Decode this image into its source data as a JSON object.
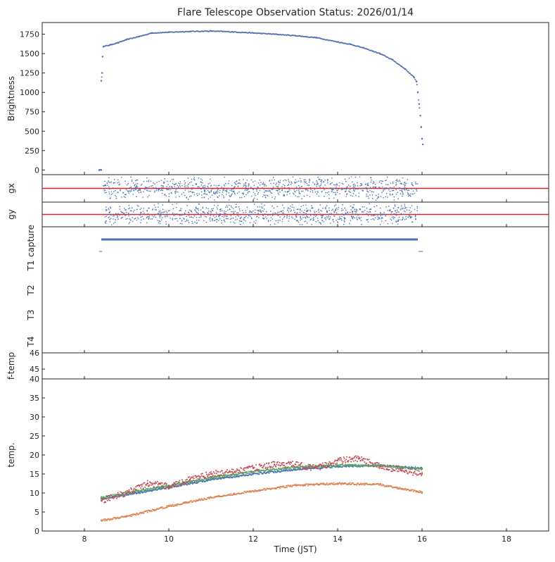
{
  "chart_data": {
    "title": "Flare Telescope Observation Status: 2026/01/14",
    "xlabel": "Time (JST)",
    "xlim": [
      7,
      19
    ],
    "xticks": [
      8,
      10,
      12,
      14,
      16,
      18
    ],
    "colors": {
      "blue": "#4c72b0",
      "orange": "#dd8452",
      "green": "#55a868",
      "red": "#c44e52",
      "axis": "#262626"
    },
    "panels": [
      {
        "id": "brightness",
        "type": "scatter",
        "ylabel": "Brightness",
        "ylim": [
          -60,
          1900
        ],
        "yticks": [
          0,
          250,
          500,
          750,
          1000,
          1250,
          1500,
          1750
        ],
        "series": [
          {
            "name": "Brightness",
            "color": "#4c72b0",
            "points": [
              [
                8.35,
                0
              ],
              [
                8.4,
                0
              ],
              [
                8.4,
                1150
              ],
              [
                8.42,
                1250
              ],
              [
                8.43,
                1460
              ],
              [
                8.45,
                1590
              ],
              [
                8.6,
                1610
              ],
              [
                8.8,
                1640
              ],
              [
                9.0,
                1680
              ],
              [
                9.3,
                1720
              ],
              [
                9.6,
                1765
              ],
              [
                10.0,
                1775
              ],
              [
                10.5,
                1785
              ],
              [
                11.0,
                1790
              ],
              [
                11.5,
                1780
              ],
              [
                12.0,
                1765
              ],
              [
                12.5,
                1750
              ],
              [
                13.0,
                1730
              ],
              [
                13.5,
                1705
              ],
              [
                14.0,
                1650
              ],
              [
                14.3,
                1620
              ],
              [
                14.6,
                1575
              ],
              [
                15.0,
                1500
              ],
              [
                15.3,
                1420
              ],
              [
                15.6,
                1300
              ],
              [
                15.8,
                1200
              ],
              [
                15.87,
                1140
              ],
              [
                15.9,
                1000
              ],
              [
                15.93,
                850
              ],
              [
                15.96,
                700
              ],
              [
                15.98,
                550
              ],
              [
                16.0,
                400
              ],
              [
                16.02,
                330
              ]
            ]
          }
        ]
      },
      {
        "id": "gx",
        "type": "scatter",
        "ylabel": "gx",
        "ylim": [
          -1,
          1
        ],
        "reference_line": 0,
        "reference_color": "#d62728",
        "series": [
          {
            "name": "gx",
            "color": "#4c72b0",
            "x_range": [
              8.45,
              15.9
            ],
            "spread": 0.6
          }
        ]
      },
      {
        "id": "gy",
        "type": "scatter",
        "ylabel": "gy",
        "ylim": [
          -1,
          1
        ],
        "reference_line": 0,
        "reference_color": "#d62728",
        "series": [
          {
            "name": "gy",
            "color": "#4c72b0",
            "x_range": [
              8.45,
              15.9
            ],
            "spread": 0.6
          }
        ]
      },
      {
        "id": "status",
        "type": "timeline",
        "ylabel_items": [
          "capture",
          "T1",
          "T2",
          "T3",
          "T4"
        ],
        "series": [
          {
            "name": "capture",
            "color": "#4c72b0",
            "segments": [
              [
                8.4,
                15.9
              ]
            ]
          },
          {
            "name": "T1",
            "color": "#4c72b0",
            "segments": [
              [
                8.35,
                8.42
              ],
              [
                15.92,
                16.02
              ]
            ]
          }
        ]
      },
      {
        "id": "f-temp",
        "type": "scatter",
        "ylabel": "f-temp",
        "ylim": [
          44.4,
          46
        ],
        "yticks": [
          45,
          46
        ]
      },
      {
        "id": "temp",
        "type": "scatter",
        "ylabel": "temp.",
        "ylim": [
          0,
          40
        ],
        "yticks": [
          0,
          5,
          10,
          15,
          20,
          25,
          30,
          35,
          40
        ],
        "series": [
          {
            "name": "blue",
            "color": "#4c72b0",
            "points": [
              [
                8.4,
                8.5
              ],
              [
                9,
                9.5
              ],
              [
                10,
                11.5
              ],
              [
                11,
                13.5
              ],
              [
                12,
                15.0
              ],
              [
                13,
                16.2
              ],
              [
                14,
                17.0
              ],
              [
                15,
                17.2
              ],
              [
                16,
                16.5
              ]
            ]
          },
          {
            "name": "green",
            "color": "#55a868",
            "points": [
              [
                8.4,
                8.8
              ],
              [
                9,
                10.0
              ],
              [
                10,
                12.0
              ],
              [
                11,
                14.0
              ],
              [
                12,
                15.6
              ],
              [
                13,
                16.8
              ],
              [
                14,
                17.3
              ],
              [
                15,
                17.2
              ],
              [
                16,
                16.3
              ]
            ]
          },
          {
            "name": "orange",
            "color": "#dd8452",
            "points": [
              [
                8.4,
                2.8
              ],
              [
                9,
                3.8
              ],
              [
                10,
                6.5
              ],
              [
                11,
                8.8
              ],
              [
                12,
                10.5
              ],
              [
                13,
                12.0
              ],
              [
                14,
                12.5
              ],
              [
                15,
                12.2
              ],
              [
                16,
                10.2
              ]
            ]
          },
          {
            "name": "red",
            "color": "#c44e52",
            "points": [
              [
                8.4,
                8.0
              ],
              [
                9,
                10.0
              ],
              [
                9.5,
                12.5
              ],
              [
                10,
                11.8
              ],
              [
                10.5,
                13.5
              ],
              [
                11,
                15.0
              ],
              [
                11.5,
                15.5
              ],
              [
                12,
                16.5
              ],
              [
                12.5,
                17.5
              ],
              [
                13,
                17.5
              ],
              [
                13.5,
                16.5
              ],
              [
                14,
                18.5
              ],
              [
                14.5,
                19.0
              ],
              [
                15,
                17.0
              ],
              [
                15.5,
                16.0
              ],
              [
                16,
                15.0
              ]
            ]
          }
        ]
      }
    ]
  }
}
